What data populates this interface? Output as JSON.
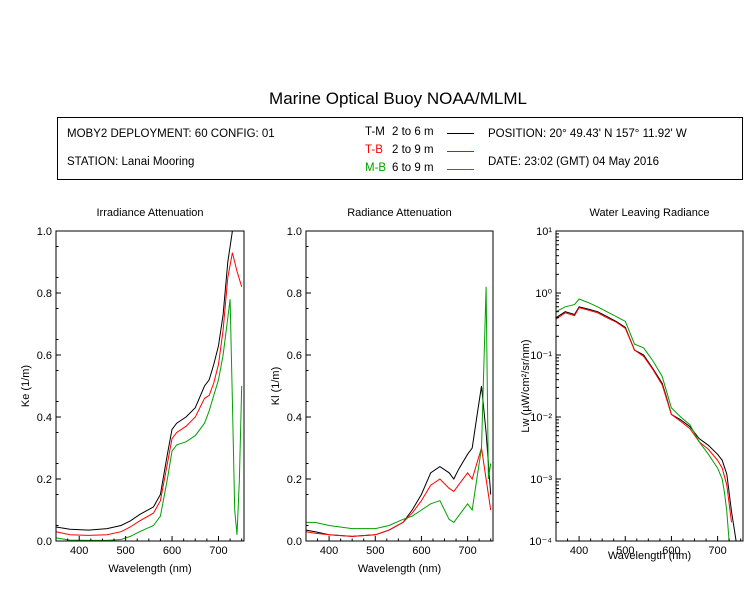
{
  "title": "Marine Optical Buoy NOAA/MLML",
  "info": {
    "deployment": "MOBY2 DEPLOYMENT: 60 CONFIG: 01",
    "station": "STATION: Lanai Mooring",
    "position": "POSITION: 20° 49.43' N   157° 11.92' W",
    "date": "DATE: 23:02 (GMT) 04 May 2016",
    "legend": [
      {
        "code": "T-M",
        "range": "2 to 6  m",
        "color": "#000000"
      },
      {
        "code": "T-B",
        "range": "2 to 9  m",
        "color": "#ff0000"
      },
      {
        "code": "M-B",
        "range": "6 to 9  m",
        "color": "#00a000"
      }
    ]
  },
  "chart_data": [
    {
      "type": "line",
      "title": "Irradiance Attenuation",
      "xlabel": "Wavelength (nm)",
      "ylabel": "Ke  (1/m)",
      "xlim": [
        350,
        755
      ],
      "ylim": [
        0,
        1.0
      ],
      "xticks": [
        400,
        500,
        600,
        700
      ],
      "yticks": [
        "0.0",
        "0.2",
        "0.4",
        "0.6",
        "0.8",
        "1.0"
      ],
      "series": [
        {
          "name": "T-M",
          "color": "#000000",
          "x": [
            350,
            380,
            420,
            460,
            490,
            510,
            530,
            560,
            575,
            590,
            600,
            610,
            630,
            650,
            670,
            680,
            690,
            700,
            710,
            720,
            730,
            740,
            750
          ],
          "y": [
            0.045,
            0.038,
            0.035,
            0.04,
            0.05,
            0.065,
            0.085,
            0.11,
            0.15,
            0.28,
            0.36,
            0.38,
            0.4,
            0.43,
            0.5,
            0.52,
            0.57,
            0.63,
            0.73,
            0.9,
            1.0,
            1.0,
            1.0
          ]
        },
        {
          "name": "T-B",
          "color": "#ff0000",
          "x": [
            350,
            380,
            420,
            460,
            490,
            510,
            530,
            560,
            575,
            590,
            600,
            610,
            630,
            650,
            670,
            680,
            690,
            700,
            710,
            720,
            730,
            740,
            750
          ],
          "y": [
            0.03,
            0.02,
            0.018,
            0.02,
            0.03,
            0.045,
            0.065,
            0.09,
            0.13,
            0.25,
            0.33,
            0.35,
            0.37,
            0.4,
            0.46,
            0.47,
            0.51,
            0.57,
            0.68,
            0.85,
            0.93,
            0.87,
            0.82
          ]
        },
        {
          "name": "M-B",
          "color": "#00a000",
          "x": [
            350,
            380,
            420,
            460,
            490,
            510,
            530,
            560,
            575,
            590,
            600,
            610,
            630,
            650,
            670,
            680,
            690,
            700,
            710,
            720,
            725,
            730,
            735,
            740,
            745,
            750
          ],
          "y": [
            0.01,
            0.003,
            0.002,
            0.002,
            0.005,
            0.015,
            0.03,
            0.05,
            0.08,
            0.2,
            0.29,
            0.31,
            0.32,
            0.34,
            0.38,
            0.42,
            0.47,
            0.52,
            0.6,
            0.72,
            0.78,
            0.45,
            0.1,
            0.02,
            0.2,
            0.5
          ]
        }
      ]
    },
    {
      "type": "line",
      "title": "Radiance Attenuation",
      "xlabel": "Wavelength (nm)",
      "ylabel": "Kl  (1/m)",
      "xlim": [
        350,
        755
      ],
      "ylim": [
        0,
        1.0
      ],
      "xticks": [
        400,
        500,
        600,
        700
      ],
      "yticks": [
        "0.0",
        "0.2",
        "0.4",
        "0.6",
        "0.8",
        "1.0"
      ],
      "series": [
        {
          "name": "T-M",
          "color": "#000000",
          "x": [
            350,
            370,
            400,
            450,
            500,
            530,
            560,
            580,
            600,
            620,
            640,
            660,
            670,
            680,
            700,
            710,
            720,
            730,
            740,
            750
          ],
          "y": [
            0.035,
            0.03,
            0.02,
            0.015,
            0.02,
            0.035,
            0.06,
            0.1,
            0.15,
            0.22,
            0.24,
            0.22,
            0.2,
            0.23,
            0.28,
            0.3,
            0.4,
            0.5,
            0.35,
            0.15
          ]
        },
        {
          "name": "T-B",
          "color": "#ff0000",
          "x": [
            350,
            370,
            400,
            450,
            500,
            530,
            560,
            580,
            600,
            620,
            640,
            660,
            670,
            680,
            700,
            710,
            720,
            730,
            740,
            750
          ],
          "y": [
            0.03,
            0.025,
            0.02,
            0.015,
            0.02,
            0.035,
            0.06,
            0.09,
            0.13,
            0.18,
            0.2,
            0.17,
            0.16,
            0.18,
            0.22,
            0.2,
            0.25,
            0.3,
            0.2,
            0.1
          ]
        },
        {
          "name": "M-B",
          "color": "#00a000",
          "x": [
            350,
            370,
            400,
            450,
            500,
            530,
            560,
            580,
            600,
            620,
            640,
            660,
            670,
            680,
            700,
            710,
            720,
            730,
            740,
            745,
            750
          ],
          "y": [
            0.06,
            0.06,
            0.05,
            0.04,
            0.04,
            0.05,
            0.07,
            0.08,
            0.1,
            0.12,
            0.13,
            0.07,
            0.06,
            0.08,
            0.12,
            0.1,
            0.2,
            0.3,
            0.82,
            0.2,
            0.25
          ]
        }
      ]
    },
    {
      "type": "line",
      "title": "Water Leaving Radiance",
      "xlabel": "Wavelength (nm)",
      "ylabel": "Lw  (µW/cm²/sr/nm)",
      "yscale": "log",
      "xlim": [
        350,
        755
      ],
      "ylim": [
        0.0001,
        10
      ],
      "xticks": [
        400,
        500,
        600,
        700
      ],
      "yticks": [
        "10^-4",
        "10^-3",
        "10^-2",
        "10^-1",
        "10^0",
        "10^1"
      ],
      "series": [
        {
          "name": "T-M",
          "color": "#000000",
          "x": [
            350,
            370,
            390,
            400,
            420,
            440,
            460,
            480,
            500,
            520,
            540,
            560,
            580,
            590,
            600,
            620,
            640,
            660,
            680,
            700,
            710,
            720,
            730,
            740
          ],
          "y": [
            0.4,
            0.5,
            0.45,
            0.6,
            0.55,
            0.5,
            0.42,
            0.35,
            0.28,
            0.12,
            0.1,
            0.06,
            0.035,
            0.02,
            0.011,
            0.009,
            0.007,
            0.0045,
            0.0035,
            0.0025,
            0.002,
            0.0012,
            0.0003,
            0.0001
          ]
        },
        {
          "name": "T-B",
          "color": "#ff0000",
          "x": [
            350,
            370,
            390,
            400,
            420,
            440,
            460,
            480,
            500,
            520,
            540,
            560,
            580,
            590,
            600,
            620,
            640,
            660,
            680,
            700,
            710,
            720,
            730
          ],
          "y": [
            0.38,
            0.48,
            0.43,
            0.58,
            0.53,
            0.48,
            0.4,
            0.34,
            0.27,
            0.12,
            0.095,
            0.058,
            0.033,
            0.019,
            0.011,
            0.0085,
            0.0065,
            0.004,
            0.003,
            0.002,
            0.0015,
            0.0008,
            0.0002
          ]
        },
        {
          "name": "M-B",
          "color": "#00a000",
          "x": [
            350,
            370,
            390,
            400,
            420,
            440,
            460,
            480,
            500,
            520,
            540,
            560,
            580,
            590,
            600,
            620,
            640,
            660,
            680,
            700,
            710,
            715,
            720,
            725
          ],
          "y": [
            0.5,
            0.6,
            0.65,
            0.8,
            0.7,
            0.6,
            0.5,
            0.42,
            0.35,
            0.15,
            0.13,
            0.08,
            0.045,
            0.025,
            0.014,
            0.01,
            0.0075,
            0.004,
            0.0025,
            0.0015,
            0.001,
            0.0006,
            0.0003,
            0.0001
          ]
        }
      ]
    }
  ]
}
